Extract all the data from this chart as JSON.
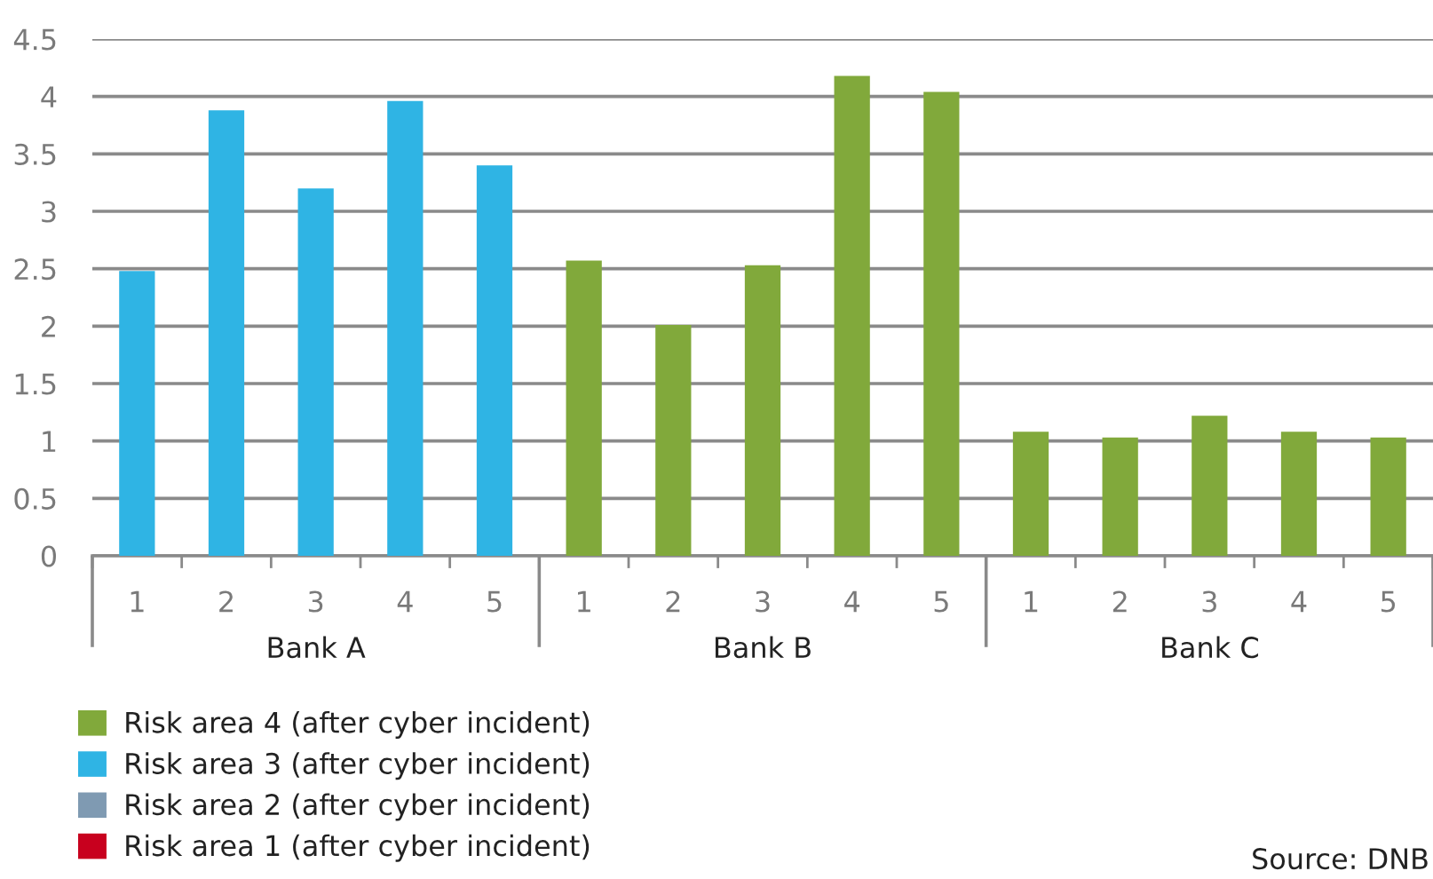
{
  "chart_data": {
    "type": "bar",
    "categories": [
      "1",
      "2",
      "3",
      "4",
      "5",
      "1",
      "2",
      "3",
      "4",
      "5",
      "1",
      "2",
      "3",
      "4",
      "5"
    ],
    "series": [
      {
        "name": "Risk area 4 (after cyber incident)",
        "color": "#81a93b",
        "values": [
          null,
          null,
          null,
          null,
          null,
          2.57,
          2.01,
          2.53,
          4.18,
          4.04,
          1.08,
          1.03,
          1.22,
          1.08,
          1.03
        ]
      },
      {
        "name": "Risk area 3 (after cyber incident)",
        "color": "#2fb4e4",
        "values": [
          2.48,
          3.88,
          3.2,
          3.96,
          3.4,
          null,
          null,
          null,
          null,
          null,
          null,
          null,
          null,
          null,
          null
        ]
      },
      {
        "name": "Risk area 2 (after cyber incident)",
        "color": "#7f9ab2",
        "values": [
          null,
          null,
          null,
          null,
          null,
          null,
          null,
          null,
          null,
          null,
          null,
          null,
          null,
          null,
          null
        ]
      },
      {
        "name": "Risk area 1 (after cyber incident)",
        "color": "#c8001e",
        "values": [
          null,
          null,
          null,
          null,
          null,
          null,
          null,
          null,
          null,
          null,
          null,
          null,
          null,
          null,
          null
        ]
      }
    ],
    "ylim": [
      0,
      4.5
    ],
    "yticks": [
      0,
      0.5,
      1,
      1.5,
      2,
      2.5,
      3,
      3.5,
      4,
      4.5
    ],
    "grid": "y",
    "legend": "bottom left",
    "annotations": [
      "Bank A",
      "Bank B",
      "Bank C",
      "Source: DNB"
    ]
  }
}
